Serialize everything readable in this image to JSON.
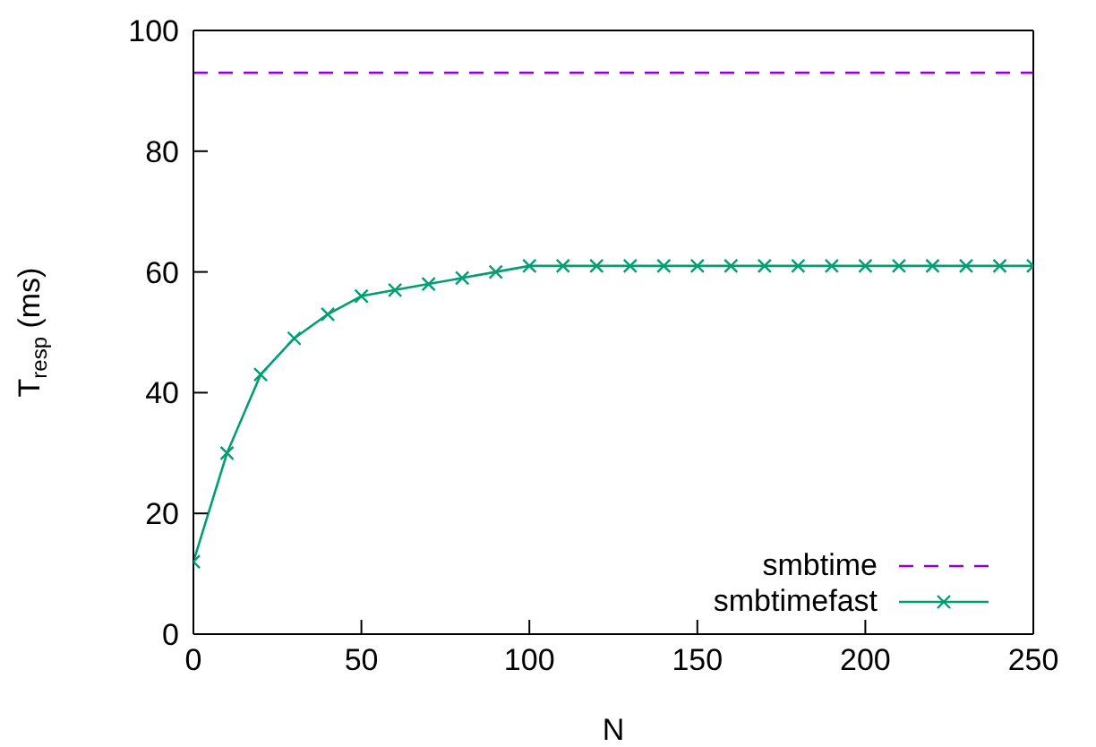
{
  "chart_data": {
    "type": "line",
    "xlabel": "N",
    "ylabel": "T$_{resp}$ (ms)",
    "xlim": [
      0,
      250
    ],
    "xticks": [
      0,
      50,
      100,
      150,
      200,
      250
    ],
    "ylim": [
      0,
      100
    ],
    "yticks": [
      0,
      20,
      40,
      60,
      80,
      100
    ],
    "grid": false,
    "legend": "bottom right",
    "series": [
      {
        "name": "smbtime",
        "color": "#9400d3",
        "x": [
          0,
          250
        ],
        "values": [
          93,
          93
        ],
        "line_style": "dashed",
        "marker": "none"
      },
      {
        "name": "smbtimefast",
        "color": "#009e73",
        "x": [
          0,
          10,
          20,
          30,
          40,
          50,
          60,
          70,
          80,
          90,
          100,
          110,
          120,
          130,
          140,
          150,
          160,
          170,
          180,
          190,
          200,
          210,
          220,
          230,
          240,
          250
        ],
        "values": [
          12,
          30,
          43,
          49,
          53,
          56,
          57,
          58,
          59,
          60,
          61,
          61,
          61,
          61,
          61,
          61,
          61,
          61,
          61,
          61,
          61,
          61,
          61,
          61,
          61,
          61
        ],
        "line_style": "solid",
        "marker": "cross"
      }
    ]
  }
}
